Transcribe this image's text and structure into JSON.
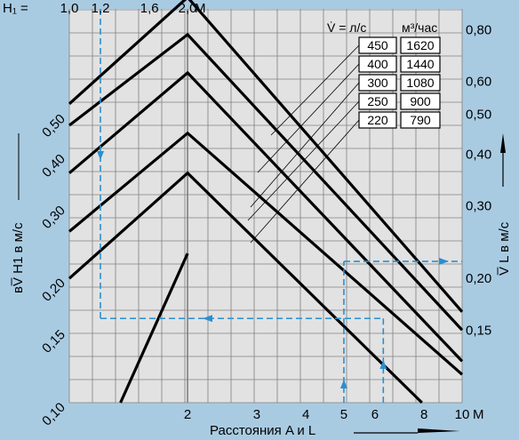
{
  "header": {
    "h1_label": "H₁ =",
    "h1_ticks": [
      "1,0",
      "1,2",
      "1,6",
      "2,0"
    ],
    "h1_unit": "М"
  },
  "axes": {
    "xlabel": "Расстояния A и L",
    "x_unit": "М",
    "ylabel_left": "вV̅ H1 в м/с",
    "ylabel_right": "V̅ L в м/с"
  },
  "legend": {
    "flow_header": "V̇ = л/с",
    "vol_header": "м³/час",
    "rows": [
      {
        "ls": "450",
        "m3h": "1620"
      },
      {
        "ls": "400",
        "m3h": "1440"
      },
      {
        "ls": "300",
        "m3h": "1080"
      },
      {
        "ls": "250",
        "m3h": "900"
      },
      {
        "ls": "220",
        "m3h": "790"
      }
    ]
  },
  "colors": {
    "background": "#a9cbe2",
    "plot_background": "#e2e2e2",
    "grid": "#808080",
    "lines": "#000000",
    "guide": "#2a8fd0"
  },
  "chart_data": {
    "type": "line",
    "xlabel": "Расстояния A и L",
    "x_scale": "log",
    "y_scale": "log",
    "xlim": [
      1,
      10
    ],
    "ylim": [
      0.1,
      0.9
    ],
    "x_ticks": [
      2,
      3,
      4,
      5,
      6,
      8,
      10
    ],
    "y_left_ticks": [
      0.1,
      0.15,
      0.2,
      0.3,
      0.4,
      0.5
    ],
    "y_right_ticks": [
      0.15,
      0.2,
      0.3,
      0.4,
      0.5,
      0.6,
      0.8
    ],
    "grid": true,
    "series": [
      {
        "name": "450",
        "x": [
          1,
          2,
          10
        ],
        "y": [
          0.53,
          0.96,
          0.166
        ]
      },
      {
        "name": "400",
        "x": [
          1,
          2,
          10
        ],
        "y": [
          0.47,
          0.78,
          0.15
        ]
      },
      {
        "name": "300",
        "x": [
          1,
          2,
          10
        ],
        "y": [
          0.36,
          0.63,
          0.126
        ]
      },
      {
        "name": "250",
        "x": [
          1,
          2,
          10
        ],
        "y": [
          0.26,
          0.45,
          0.117
        ]
      },
      {
        "name": "220",
        "x": [
          1,
          2,
          7.9
        ],
        "y": [
          0.2,
          0.36,
          0.1
        ]
      },
      {
        "name": "",
        "x": [
          1.35,
          2
        ],
        "y": [
          0.1,
          0.23
        ]
      }
    ],
    "guide_example": {
      "H1": 1.2,
      "v_H1": 0.16,
      "A": 6.3,
      "L": 5.0,
      "v_L": 0.22
    }
  }
}
